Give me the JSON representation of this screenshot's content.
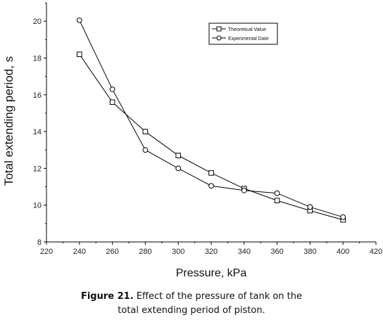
{
  "chart_data": {
    "type": "line",
    "xlabel": "Pressure, kPa",
    "ylabel": "Total extending period,  s",
    "xlim": [
      220,
      420
    ],
    "ylim": [
      8,
      21
    ],
    "xticks": [
      "220",
      "240",
      "260",
      "280",
      "300",
      "320",
      "340",
      "360",
      "380",
      "400",
      "420"
    ],
    "yticks": [
      "8",
      "10",
      "12",
      "14",
      "16",
      "18",
      "20"
    ],
    "legend_position": "top-right",
    "grid": false,
    "series": [
      {
        "name": "Theoretical Value",
        "marker": "square",
        "x": [
          240,
          260,
          280,
          300,
          320,
          340,
          360,
          380,
          400
        ],
        "y": [
          18.2,
          15.6,
          14.0,
          12.7,
          11.75,
          10.9,
          10.25,
          9.7,
          9.2
        ]
      },
      {
        "name": "Experimental Date",
        "marker": "circle",
        "x": [
          240,
          260,
          280,
          300,
          320,
          340,
          360,
          380,
          400
        ],
        "y": [
          20.05,
          16.3,
          13.0,
          12.0,
          11.05,
          10.8,
          10.65,
          9.9,
          9.35
        ]
      }
    ]
  },
  "caption": {
    "label": "Figure 21.",
    "line1": " Effect of the pressure of tank on the",
    "line2": "total extending period of piston."
  }
}
